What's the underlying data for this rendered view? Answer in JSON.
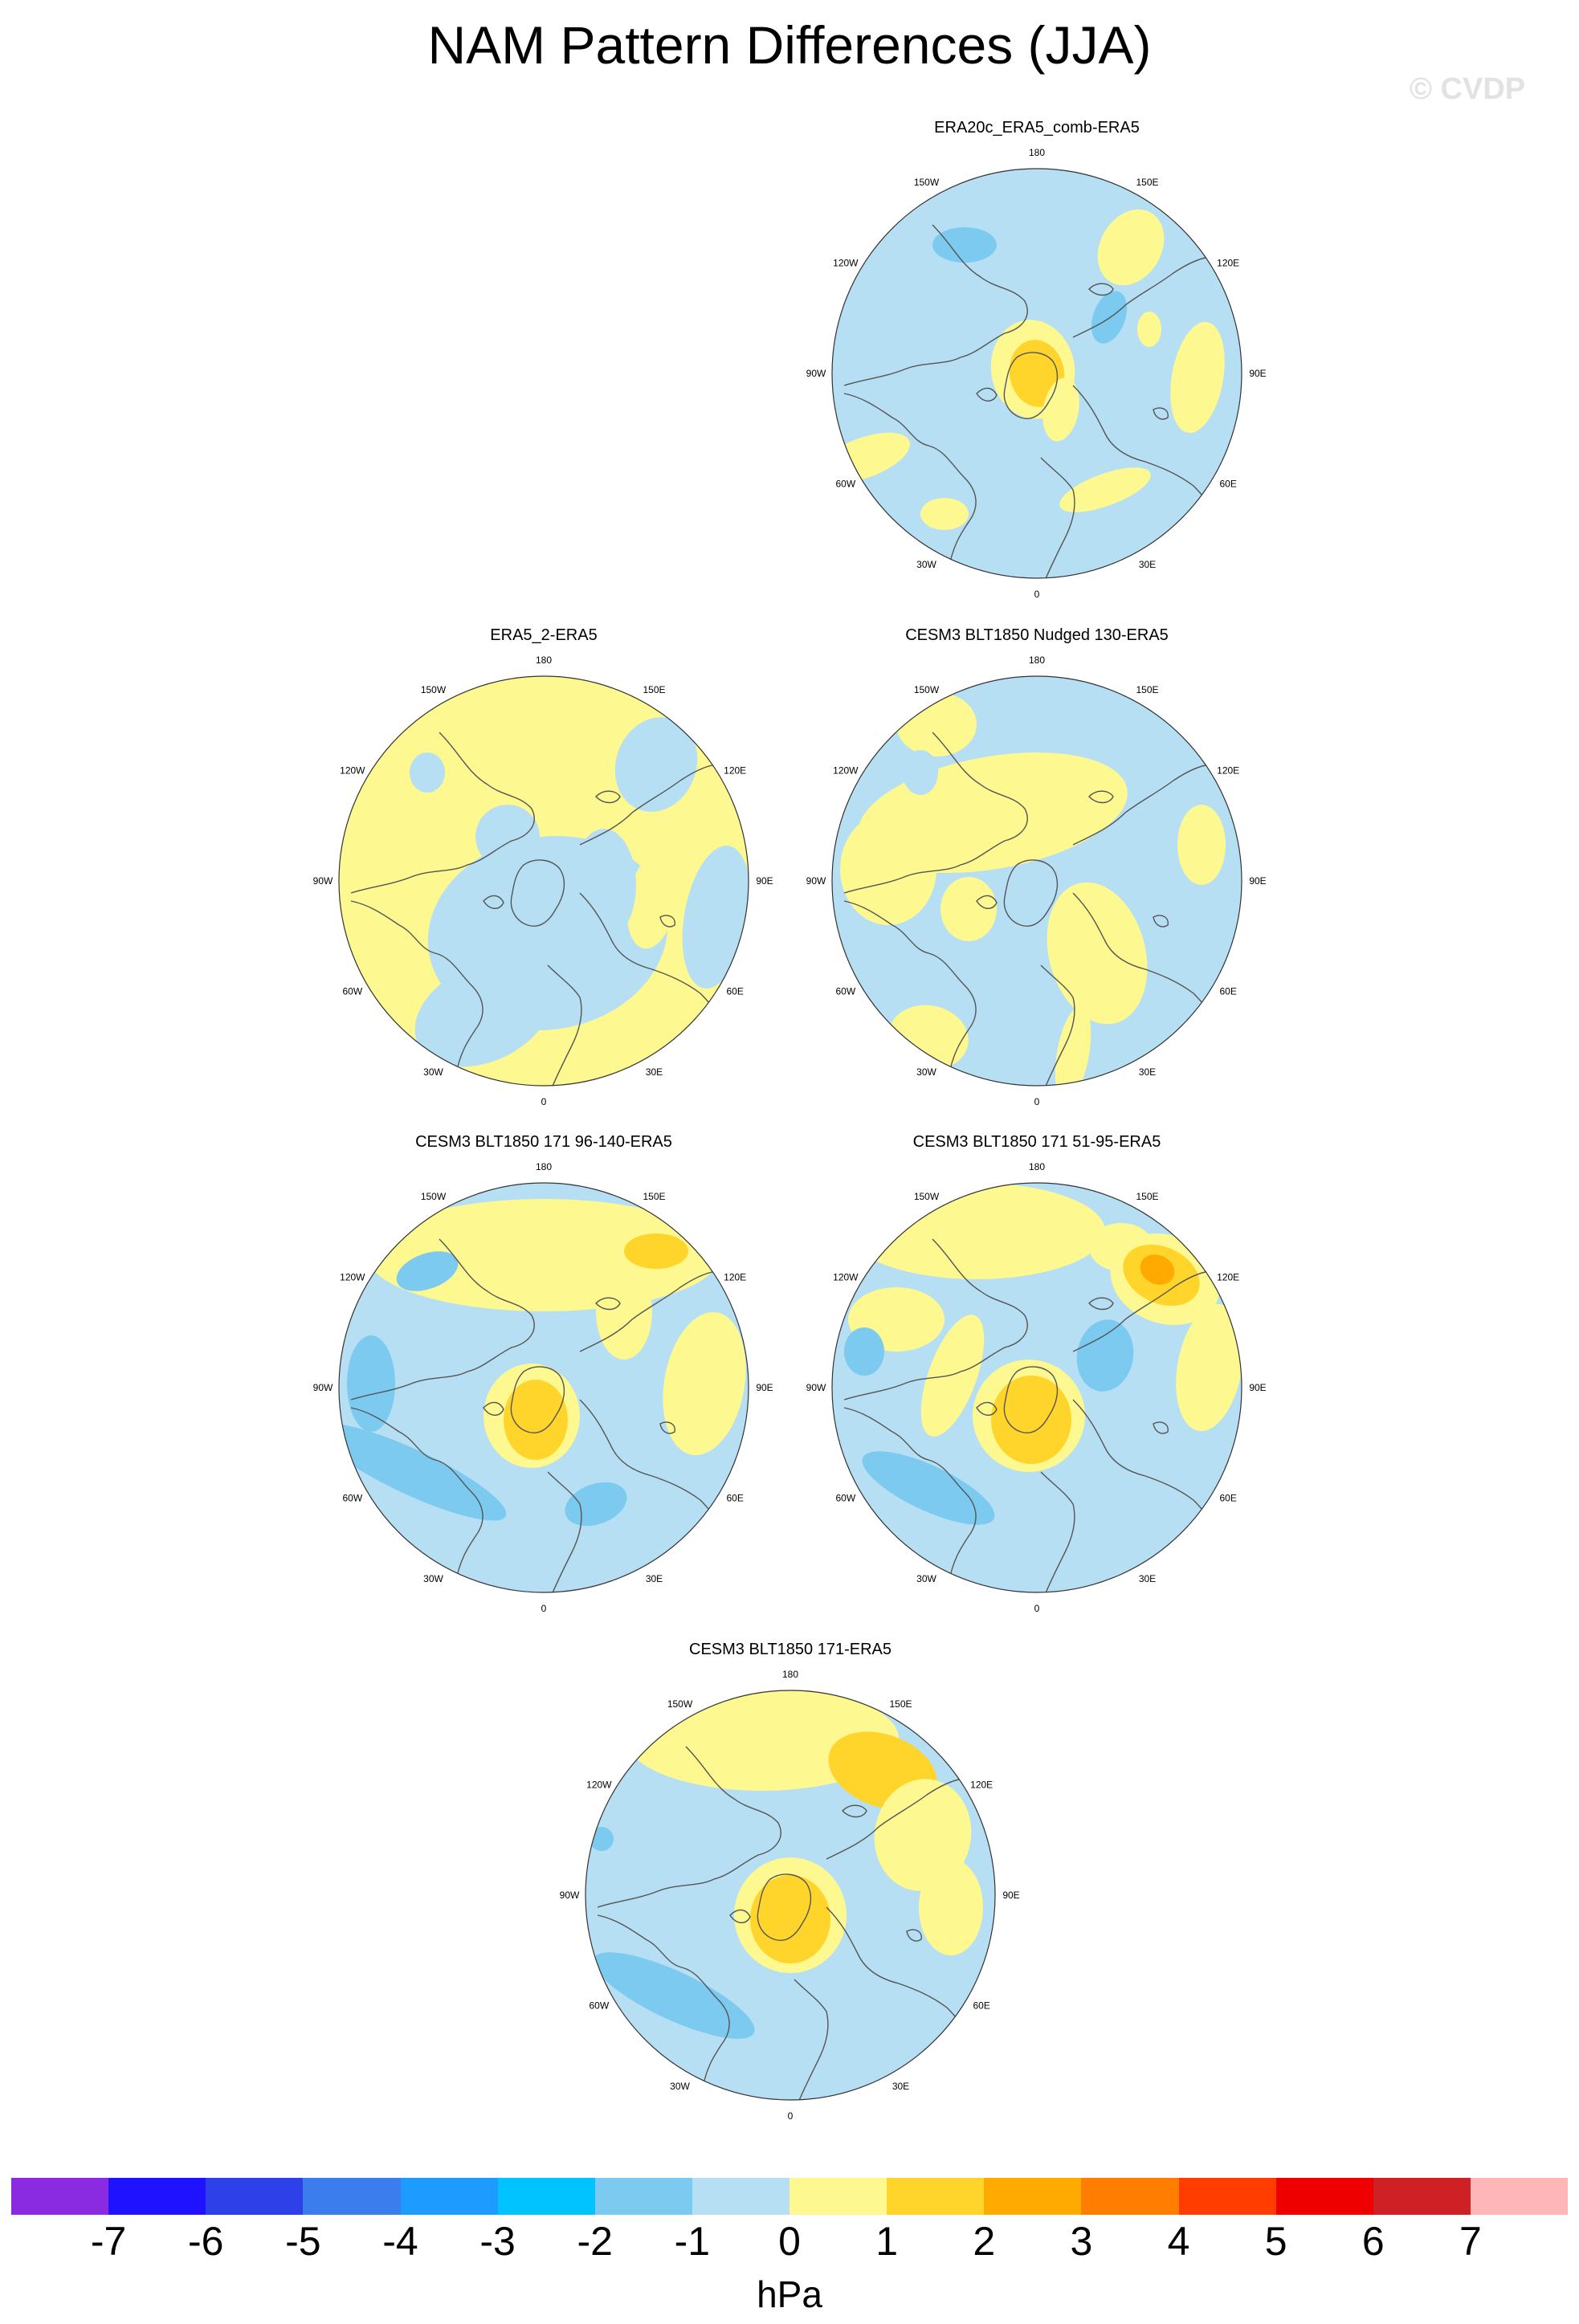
{
  "title": "NAM Pattern Differences (JJA)",
  "watermark": "© CVDP",
  "panels": [
    {
      "id": "p1",
      "title": "ERA20c_ERA5_comb-ERA5",
      "pattern": "era20c"
    },
    {
      "id": "p2",
      "title": "ERA5_2-ERA5",
      "pattern": "era5_2"
    },
    {
      "id": "p3",
      "title": "CESM3 BLT1850 Nudged 130-ERA5",
      "pattern": "nudged"
    },
    {
      "id": "p4",
      "title": "CESM3 BLT1850 171 96-140-ERA5",
      "pattern": "m96"
    },
    {
      "id": "p5",
      "title": "CESM3 BLT1850 171 51-95-ERA5",
      "pattern": "m51"
    },
    {
      "id": "p6",
      "title": "CESM3 BLT1850 171-ERA5",
      "pattern": "m171"
    }
  ],
  "lon_labels": [
    "180",
    "150E",
    "120E",
    "90E",
    "60E",
    "30E",
    "0",
    "30W",
    "60W",
    "90W",
    "120W",
    "150W"
  ],
  "colorbar": {
    "colors": [
      "#8a2be2",
      "#1e12ff",
      "#2e41e8",
      "#3b7ded",
      "#1e9bff",
      "#00c3ff",
      "#7ccaef",
      "#b6dff4",
      "#fdf890",
      "#ffd52b",
      "#ffaa00",
      "#ff7d00",
      "#ff3d00",
      "#ee0000",
      "#cf2025",
      "#ffb6b9"
    ],
    "ticks": [
      "-7",
      "-6",
      "-5",
      "-4",
      "-3",
      "-2",
      "-1",
      "0",
      "1",
      "2",
      "3",
      "4",
      "5",
      "6",
      "7"
    ],
    "unit": "hPa"
  }
}
